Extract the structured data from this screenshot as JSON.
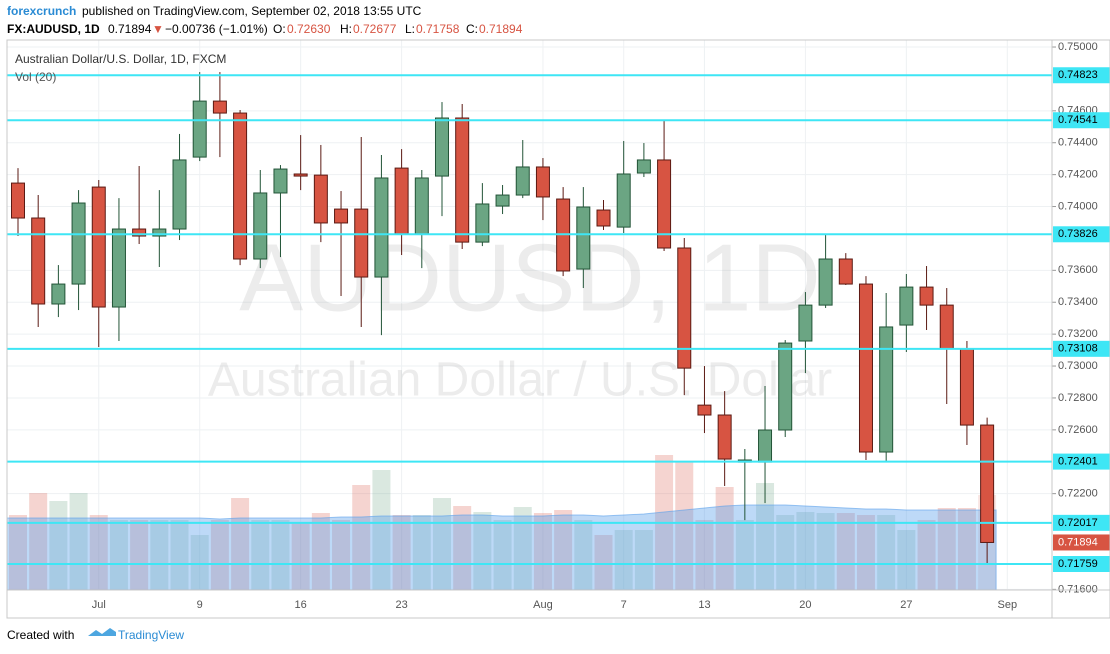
{
  "header": {
    "author": "forexcrunch",
    "published": "published on TradingView.com, September 02, 2018 13:55 UTC",
    "symbol": "FX:AUDUSD, 1D",
    "last": "0.71894",
    "arrow": "▼",
    "change": "−0.00736 (−1.01%)",
    "o_label": "O:",
    "o": "0.72630",
    "h_label": "H:",
    "h": "0.72677",
    "l_label": "L:",
    "l": "0.71758",
    "c_label": "C:",
    "c": "0.71894"
  },
  "footer": {
    "created": "Created with",
    "brand": "TradingView"
  },
  "chart_data": {
    "type": "candlestick",
    "title": "Australian Dollar/U.S. Dollar, 1D, FXCM",
    "volume_label": "Vol (20)",
    "watermark": "AUDUSD, 1D",
    "watermark_sub": "Australian Dollar / U.S. Dollar",
    "categories": [
      null,
      null,
      null,
      null,
      "Jul",
      null,
      null,
      null,
      null,
      "9",
      null,
      null,
      null,
      null,
      "16",
      null,
      null,
      null,
      null,
      "23",
      null,
      null,
      null,
      null,
      null,
      null,
      "Aug",
      null,
      null,
      null,
      "7",
      null,
      null,
      null,
      "13",
      null,
      null,
      null,
      null,
      "20",
      null,
      null,
      null,
      null,
      "27",
      null,
      null,
      null,
      null,
      "Sep"
    ],
    "open": [
      0.74147,
      0.73928,
      0.73389,
      0.73514,
      0.74122,
      0.7337,
      0.73859,
      0.73815,
      0.73859,
      0.7431,
      0.74661,
      0.74586,
      0.73671,
      0.74085,
      0.74204,
      0.74197,
      0.73984,
      0.73984,
      0.73558,
      0.74241,
      0.73828,
      0.74191,
      0.74555,
      0.73777,
      0.74003,
      0.74072,
      0.74248,
      0.74047,
      0.73608,
      0.73978,
      0.73871,
      0.7421,
      0.74292,
      0.7374,
      0.72755,
      0.72693,
      0.72398,
      0.72398,
      0.72599,
      0.73157,
      0.73382,
      0.73671,
      0.73514,
      0.72461,
      0.73257,
      0.73495,
      0.73382,
      0.73107,
      0.7263,
      null
    ],
    "high": [
      0.74241,
      0.74072,
      0.73633,
      0.74103,
      0.74166,
      0.74053,
      0.74254,
      0.74103,
      0.74455,
      0.74843,
      0.74843,
      0.74605,
      0.74229,
      0.7426,
      0.74448,
      0.74386,
      0.74097,
      0.74436,
      0.74323,
      0.7436,
      0.74229,
      0.74655,
      0.74643,
      0.74147,
      0.74135,
      0.74417,
      0.74304,
      0.74122,
      0.74122,
      0.74041,
      0.74411,
      0.74398,
      0.74536,
      0.73803,
      0.73,
      0.72843,
      0.7248,
      0.72875,
      0.73163,
      0.73464,
      0.73828,
      0.73708,
      0.73564,
      0.73458,
      0.73577,
      0.73627,
      0.73489,
      0.73157,
      0.72677,
      null
    ],
    "low": [
      0.73815,
      0.73245,
      0.73307,
      0.73351,
      0.73119,
      0.73157,
      0.73765,
      0.73621,
      0.7379,
      0.74285,
      0.7431,
      0.73633,
      0.73614,
      0.73683,
      0.74103,
      0.73777,
      0.73439,
      0.73245,
      0.73194,
      0.73696,
      0.73614,
      0.7394,
      0.73734,
      0.73752,
      0.73953,
      0.74053,
      0.73915,
      0.73564,
      0.73489,
      0.73853,
      0.73834,
      0.74185,
      0.73721,
      0.72818,
      0.7258,
      0.72248,
      0.72034,
      0.72141,
      0.72555,
      0.72956,
      0.73364,
      0.73508,
      0.72411,
      0.72398,
      0.73088,
      0.73226,
      0.72762,
      0.72505,
      0.71758,
      null
    ],
    "close": [
      0.73928,
      0.73389,
      0.73514,
      0.74022,
      0.7337,
      0.73859,
      0.73815,
      0.73859,
      0.74292,
      0.74661,
      0.74586,
      0.73671,
      0.74085,
      0.74235,
      0.74191,
      0.73897,
      0.73897,
      0.73558,
      0.74179,
      0.73828,
      0.74179,
      0.74555,
      0.73777,
      0.74016,
      0.74072,
      0.74248,
      0.7406,
      0.73596,
      0.73997,
      0.73878,
      0.74204,
      0.74292,
      0.7374,
      0.72987,
      0.72693,
      0.72417,
      0.72411,
      0.72599,
      0.73144,
      0.73382,
      0.73671,
      0.73514,
      0.72461,
      0.73245,
      0.73495,
      0.73382,
      0.73107,
      0.7263,
      0.71894,
      null
    ],
    "volume": [
      75,
      97,
      89,
      97,
      75,
      70,
      70,
      70,
      70,
      55,
      70,
      92,
      70,
      70,
      68,
      77,
      70,
      105,
      120,
      75,
      75,
      92,
      84,
      78,
      70,
      83,
      77,
      80,
      70,
      55,
      60,
      60,
      135,
      128,
      70,
      103,
      70,
      107,
      75,
      78,
      77,
      77,
      75,
      75,
      60,
      70,
      82,
      82,
      95,
      null
    ],
    "volume_ma": [
      72,
      72,
      72,
      72,
      72,
      72,
      72,
      72,
      72,
      72,
      71,
      72,
      72,
      72,
      72,
      72,
      73,
      73,
      74,
      74,
      74,
      74,
      75,
      75,
      74,
      74,
      74,
      75,
      75,
      74,
      75,
      76,
      78,
      80,
      82,
      84,
      85,
      85,
      85,
      84,
      83,
      82,
      81,
      81,
      80,
      80,
      80,
      80,
      80,
      null
    ],
    "up_color": "#6ba583",
    "down_color": "#d75442",
    "level_color": "#3ee6f5",
    "ylim": [
      0.71596,
      0.75044
    ],
    "yticks": [
      {
        "value": 0.75,
        "label": "0.75000"
      },
      {
        "value": 0.746,
        "label": "0.74600"
      },
      {
        "value": 0.744,
        "label": "0.74400"
      },
      {
        "value": 0.742,
        "label": "0.74200"
      },
      {
        "value": 0.74,
        "label": "0.74000"
      },
      {
        "value": 0.736,
        "label": "0.73600"
      },
      {
        "value": 0.734,
        "label": "0.73400"
      },
      {
        "value": 0.732,
        "label": "0.73200"
      },
      {
        "value": 0.73,
        "label": "0.73000"
      },
      {
        "value": 0.728,
        "label": "0.72800"
      },
      {
        "value": 0.726,
        "label": "0.72600"
      },
      {
        "value": 0.722,
        "label": "0.72200"
      },
      {
        "value": 0.716,
        "label": "0.71600"
      }
    ],
    "levels": [
      0.74823,
      0.74541,
      0.73826,
      0.73108,
      0.72401,
      0.72017,
      0.71759
    ],
    "last_price": 0.71894,
    "grid": true
  }
}
